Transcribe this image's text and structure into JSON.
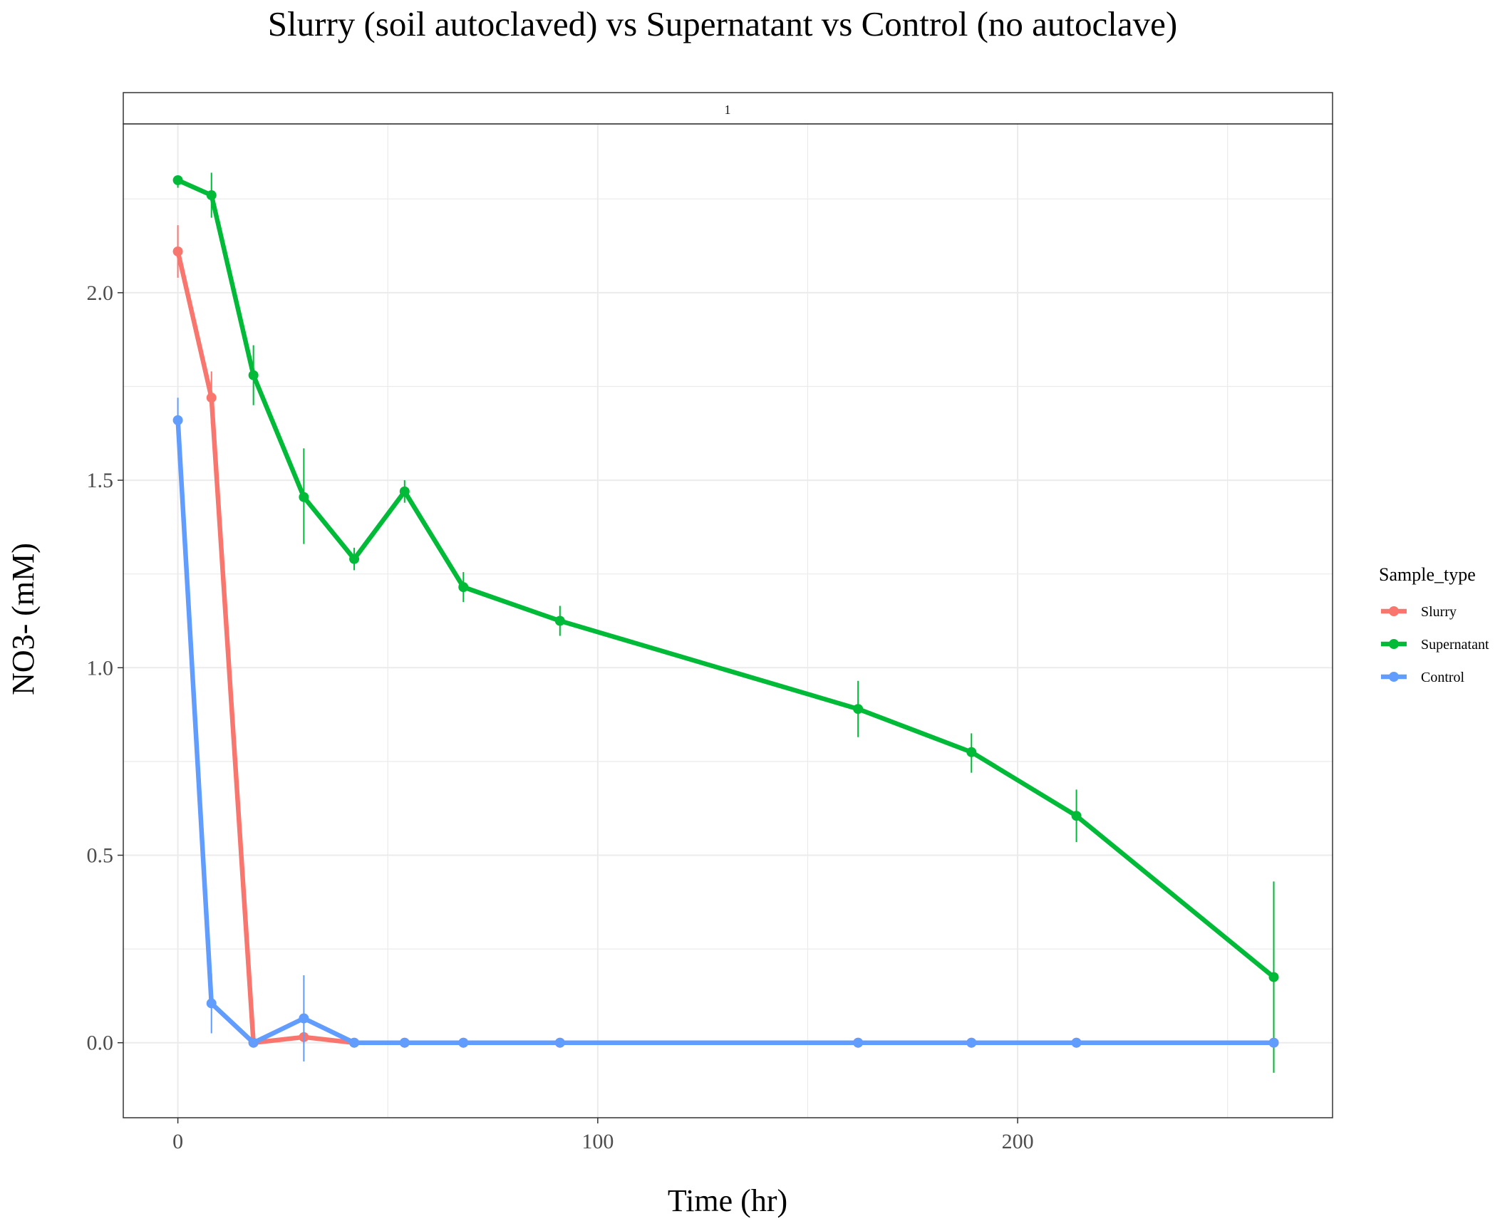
{
  "chart_data": {
    "type": "line",
    "title": "Slurry (soil autoclaved) vs Supernatant vs Control (no autoclave)",
    "facet_label": "1",
    "xlabel": "Time (hr)",
    "ylabel": "NO3- (mM)",
    "xlim": [
      -13,
      275
    ],
    "ylim": [
      -0.2,
      2.45
    ],
    "x_ticks": [
      0,
      100,
      200
    ],
    "x_tick_labels": [
      "0",
      "100",
      "200"
    ],
    "y_ticks": [
      0.0,
      0.5,
      1.0,
      1.5,
      2.0
    ],
    "y_tick_labels": [
      "0.0",
      "0.5",
      "1.0",
      "1.5",
      "2.0"
    ],
    "x_minor_gridlines": [
      50,
      150,
      250
    ],
    "y_minor_gridlines": [
      0.25,
      0.75,
      1.25,
      1.75,
      2.25
    ],
    "grid": true,
    "legend": {
      "title": "Sample_type",
      "position": "right",
      "entries": [
        "Slurry",
        "Supernatant",
        "Control"
      ]
    },
    "series": [
      {
        "name": "Slurry",
        "color": "#F8766D",
        "x": [
          0,
          8,
          18,
          30,
          42,
          54,
          68,
          91,
          162,
          189,
          214,
          261
        ],
        "y": [
          2.11,
          1.72,
          0.0,
          0.015,
          0.0,
          0.0,
          0.0,
          0.0,
          0.0,
          0.0,
          0.0,
          0.0
        ],
        "err_low": [
          2.04,
          1.65,
          0.0,
          0.0,
          0.0,
          0.0,
          0.0,
          0.0,
          0.0,
          0.0,
          0.0,
          0.0
        ],
        "err_high": [
          2.18,
          1.79,
          0.0,
          0.03,
          0.0,
          0.0,
          0.0,
          0.0,
          0.0,
          0.0,
          0.0,
          0.0
        ]
      },
      {
        "name": "Supernatant",
        "color": "#00BA38",
        "x": [
          0,
          8,
          18,
          30,
          42,
          54,
          68,
          91,
          162,
          189,
          214,
          261
        ],
        "y": [
          2.3,
          2.26,
          1.78,
          1.455,
          1.29,
          1.47,
          1.215,
          1.125,
          0.89,
          0.775,
          0.605,
          0.175
        ],
        "err_low": [
          2.28,
          2.2,
          1.7,
          1.33,
          1.26,
          1.44,
          1.175,
          1.085,
          0.815,
          0.72,
          0.535,
          -0.08
        ],
        "err_high": [
          2.31,
          2.32,
          1.86,
          1.585,
          1.32,
          1.5,
          1.255,
          1.165,
          0.965,
          0.825,
          0.675,
          0.43
        ]
      },
      {
        "name": "Control",
        "color": "#619CFF",
        "x": [
          0,
          8,
          18,
          30,
          42,
          54,
          68,
          91,
          162,
          189,
          214,
          261
        ],
        "y": [
          1.66,
          0.105,
          0.0,
          0.065,
          0.0,
          0.0,
          0.0,
          0.0,
          0.0,
          0.0,
          0.0,
          0.0
        ],
        "err_low": [
          1.6,
          0.025,
          0.0,
          -0.05,
          0.0,
          0.0,
          0.0,
          0.0,
          0.0,
          0.0,
          0.0,
          0.0
        ],
        "err_high": [
          1.72,
          0.185,
          0.0,
          0.18,
          0.0,
          0.0,
          0.0,
          0.0,
          0.0,
          0.0,
          0.0,
          0.0
        ]
      }
    ]
  }
}
